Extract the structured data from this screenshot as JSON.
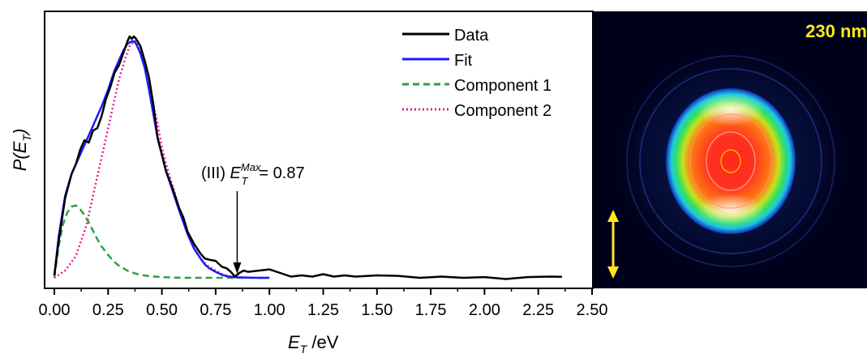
{
  "chart_data": [
    {
      "type": "line",
      "xlabel_main": "E",
      "xlabel_sub": "T",
      "xlabel_unit": " /eV",
      "ylabel_main": "P(E",
      "ylabel_sub": "T",
      "ylabel_close": ")",
      "xlim": [
        0,
        2.5
      ],
      "x_ticks": [
        "0.00",
        "0.25",
        "0.50",
        "0.75",
        "1.00",
        "1.25",
        "1.50",
        "1.75",
        "2.00",
        "2.25",
        "2.50"
      ],
      "legend_position": "top-right",
      "series": [
        {
          "name": "Data",
          "color": "#000000",
          "style": "solid",
          "x": [
            0.0,
            0.02,
            0.05,
            0.08,
            0.1,
            0.12,
            0.14,
            0.16,
            0.18,
            0.2,
            0.22,
            0.24,
            0.26,
            0.28,
            0.3,
            0.32,
            0.34,
            0.35,
            0.36,
            0.37,
            0.38,
            0.4,
            0.42,
            0.44,
            0.46,
            0.48,
            0.5,
            0.52,
            0.55,
            0.58,
            0.6,
            0.62,
            0.65,
            0.68,
            0.7,
            0.72,
            0.75,
            0.78,
            0.8,
            0.82,
            0.84,
            0.86,
            0.88,
            0.9,
            0.95,
            1.0,
            1.05,
            1.1,
            1.15,
            1.2,
            1.25,
            1.3,
            1.35,
            1.4,
            1.5,
            1.6,
            1.7,
            1.8,
            1.9,
            2.0,
            2.1,
            2.2,
            2.3,
            2.36
          ],
          "y": [
            0.01,
            0.15,
            0.33,
            0.43,
            0.47,
            0.53,
            0.57,
            0.56,
            0.61,
            0.62,
            0.67,
            0.74,
            0.79,
            0.85,
            0.88,
            0.93,
            0.98,
            1.0,
            0.99,
            1.0,
            0.99,
            0.96,
            0.9,
            0.83,
            0.72,
            0.58,
            0.51,
            0.44,
            0.37,
            0.29,
            0.25,
            0.19,
            0.14,
            0.1,
            0.08,
            0.075,
            0.07,
            0.045,
            0.04,
            0.025,
            0.005,
            0.02,
            0.03,
            0.025,
            0.03,
            0.035,
            0.02,
            0.005,
            0.01,
            0.005,
            0.015,
            0.005,
            0.01,
            0.005,
            0.01,
            0.008,
            0.0,
            0.005,
            0.0,
            0.003,
            -0.005,
            0.003,
            0.005,
            0.004
          ]
        },
        {
          "name": "Fit",
          "color": "#1a1aff",
          "style": "solid",
          "x": [
            0.0,
            0.02,
            0.05,
            0.08,
            0.1,
            0.12,
            0.15,
            0.18,
            0.2,
            0.22,
            0.25,
            0.28,
            0.3,
            0.32,
            0.34,
            0.36,
            0.37,
            0.38,
            0.4,
            0.42,
            0.44,
            0.46,
            0.48,
            0.5,
            0.52,
            0.55,
            0.58,
            0.6,
            0.62,
            0.65,
            0.68,
            0.7,
            0.72,
            0.75,
            0.78,
            0.8,
            0.82,
            0.85,
            0.9,
            0.95,
            1.0
          ],
          "y": [
            0.01,
            0.17,
            0.34,
            0.43,
            0.47,
            0.51,
            0.57,
            0.63,
            0.67,
            0.71,
            0.78,
            0.86,
            0.9,
            0.94,
            0.97,
            0.98,
            0.98,
            0.97,
            0.93,
            0.87,
            0.78,
            0.68,
            0.58,
            0.51,
            0.44,
            0.36,
            0.28,
            0.23,
            0.18,
            0.12,
            0.08,
            0.055,
            0.04,
            0.025,
            0.012,
            0.007,
            0.004,
            0.002,
            0.001,
            0.0,
            0.0
          ]
        },
        {
          "name": "Component 1",
          "color": "#2e9e46",
          "style": "dashed",
          "x": [
            0.0,
            0.02,
            0.04,
            0.06,
            0.08,
            0.1,
            0.12,
            0.14,
            0.16,
            0.18,
            0.2,
            0.22,
            0.25,
            0.28,
            0.3,
            0.35,
            0.4,
            0.45,
            0.5,
            0.55,
            0.6,
            0.7,
            0.8,
            0.9,
            1.0
          ],
          "y": [
            0.0,
            0.13,
            0.22,
            0.27,
            0.295,
            0.3,
            0.285,
            0.26,
            0.23,
            0.195,
            0.16,
            0.13,
            0.095,
            0.065,
            0.05,
            0.025,
            0.012,
            0.006,
            0.003,
            0.001,
            0.0,
            0.0,
            0.0,
            0.0,
            0.0
          ]
        },
        {
          "name": "Component 2",
          "color": "#e0208f",
          "style": "dotted",
          "x": [
            0.0,
            0.05,
            0.1,
            0.15,
            0.2,
            0.25,
            0.28,
            0.3,
            0.33,
            0.35,
            0.37,
            0.38,
            0.4,
            0.42,
            0.45,
            0.48,
            0.5,
            0.52,
            0.55,
            0.58,
            0.6,
            0.62,
            0.65,
            0.68,
            0.7,
            0.72,
            0.75,
            0.78,
            0.8,
            0.82,
            0.85,
            0.9,
            0.95,
            1.0
          ],
          "y": [
            0.0,
            0.03,
            0.09,
            0.22,
            0.42,
            0.62,
            0.74,
            0.82,
            0.91,
            0.96,
            0.98,
            0.98,
            0.95,
            0.88,
            0.76,
            0.64,
            0.54,
            0.47,
            0.38,
            0.29,
            0.23,
            0.18,
            0.12,
            0.08,
            0.06,
            0.045,
            0.03,
            0.015,
            0.01,
            0.005,
            0.003,
            0.001,
            0.0,
            0.0
          ]
        }
      ],
      "annotation": {
        "prefix": "(III) ",
        "e": "E",
        "sub": "T",
        "sup": "Max",
        "suffix": "= 0.87",
        "arrow_x": 0.85
      }
    },
    {
      "type": "image",
      "wavelength": "230 nm",
      "polarization_arrow_color": "#ffe81a"
    }
  ]
}
